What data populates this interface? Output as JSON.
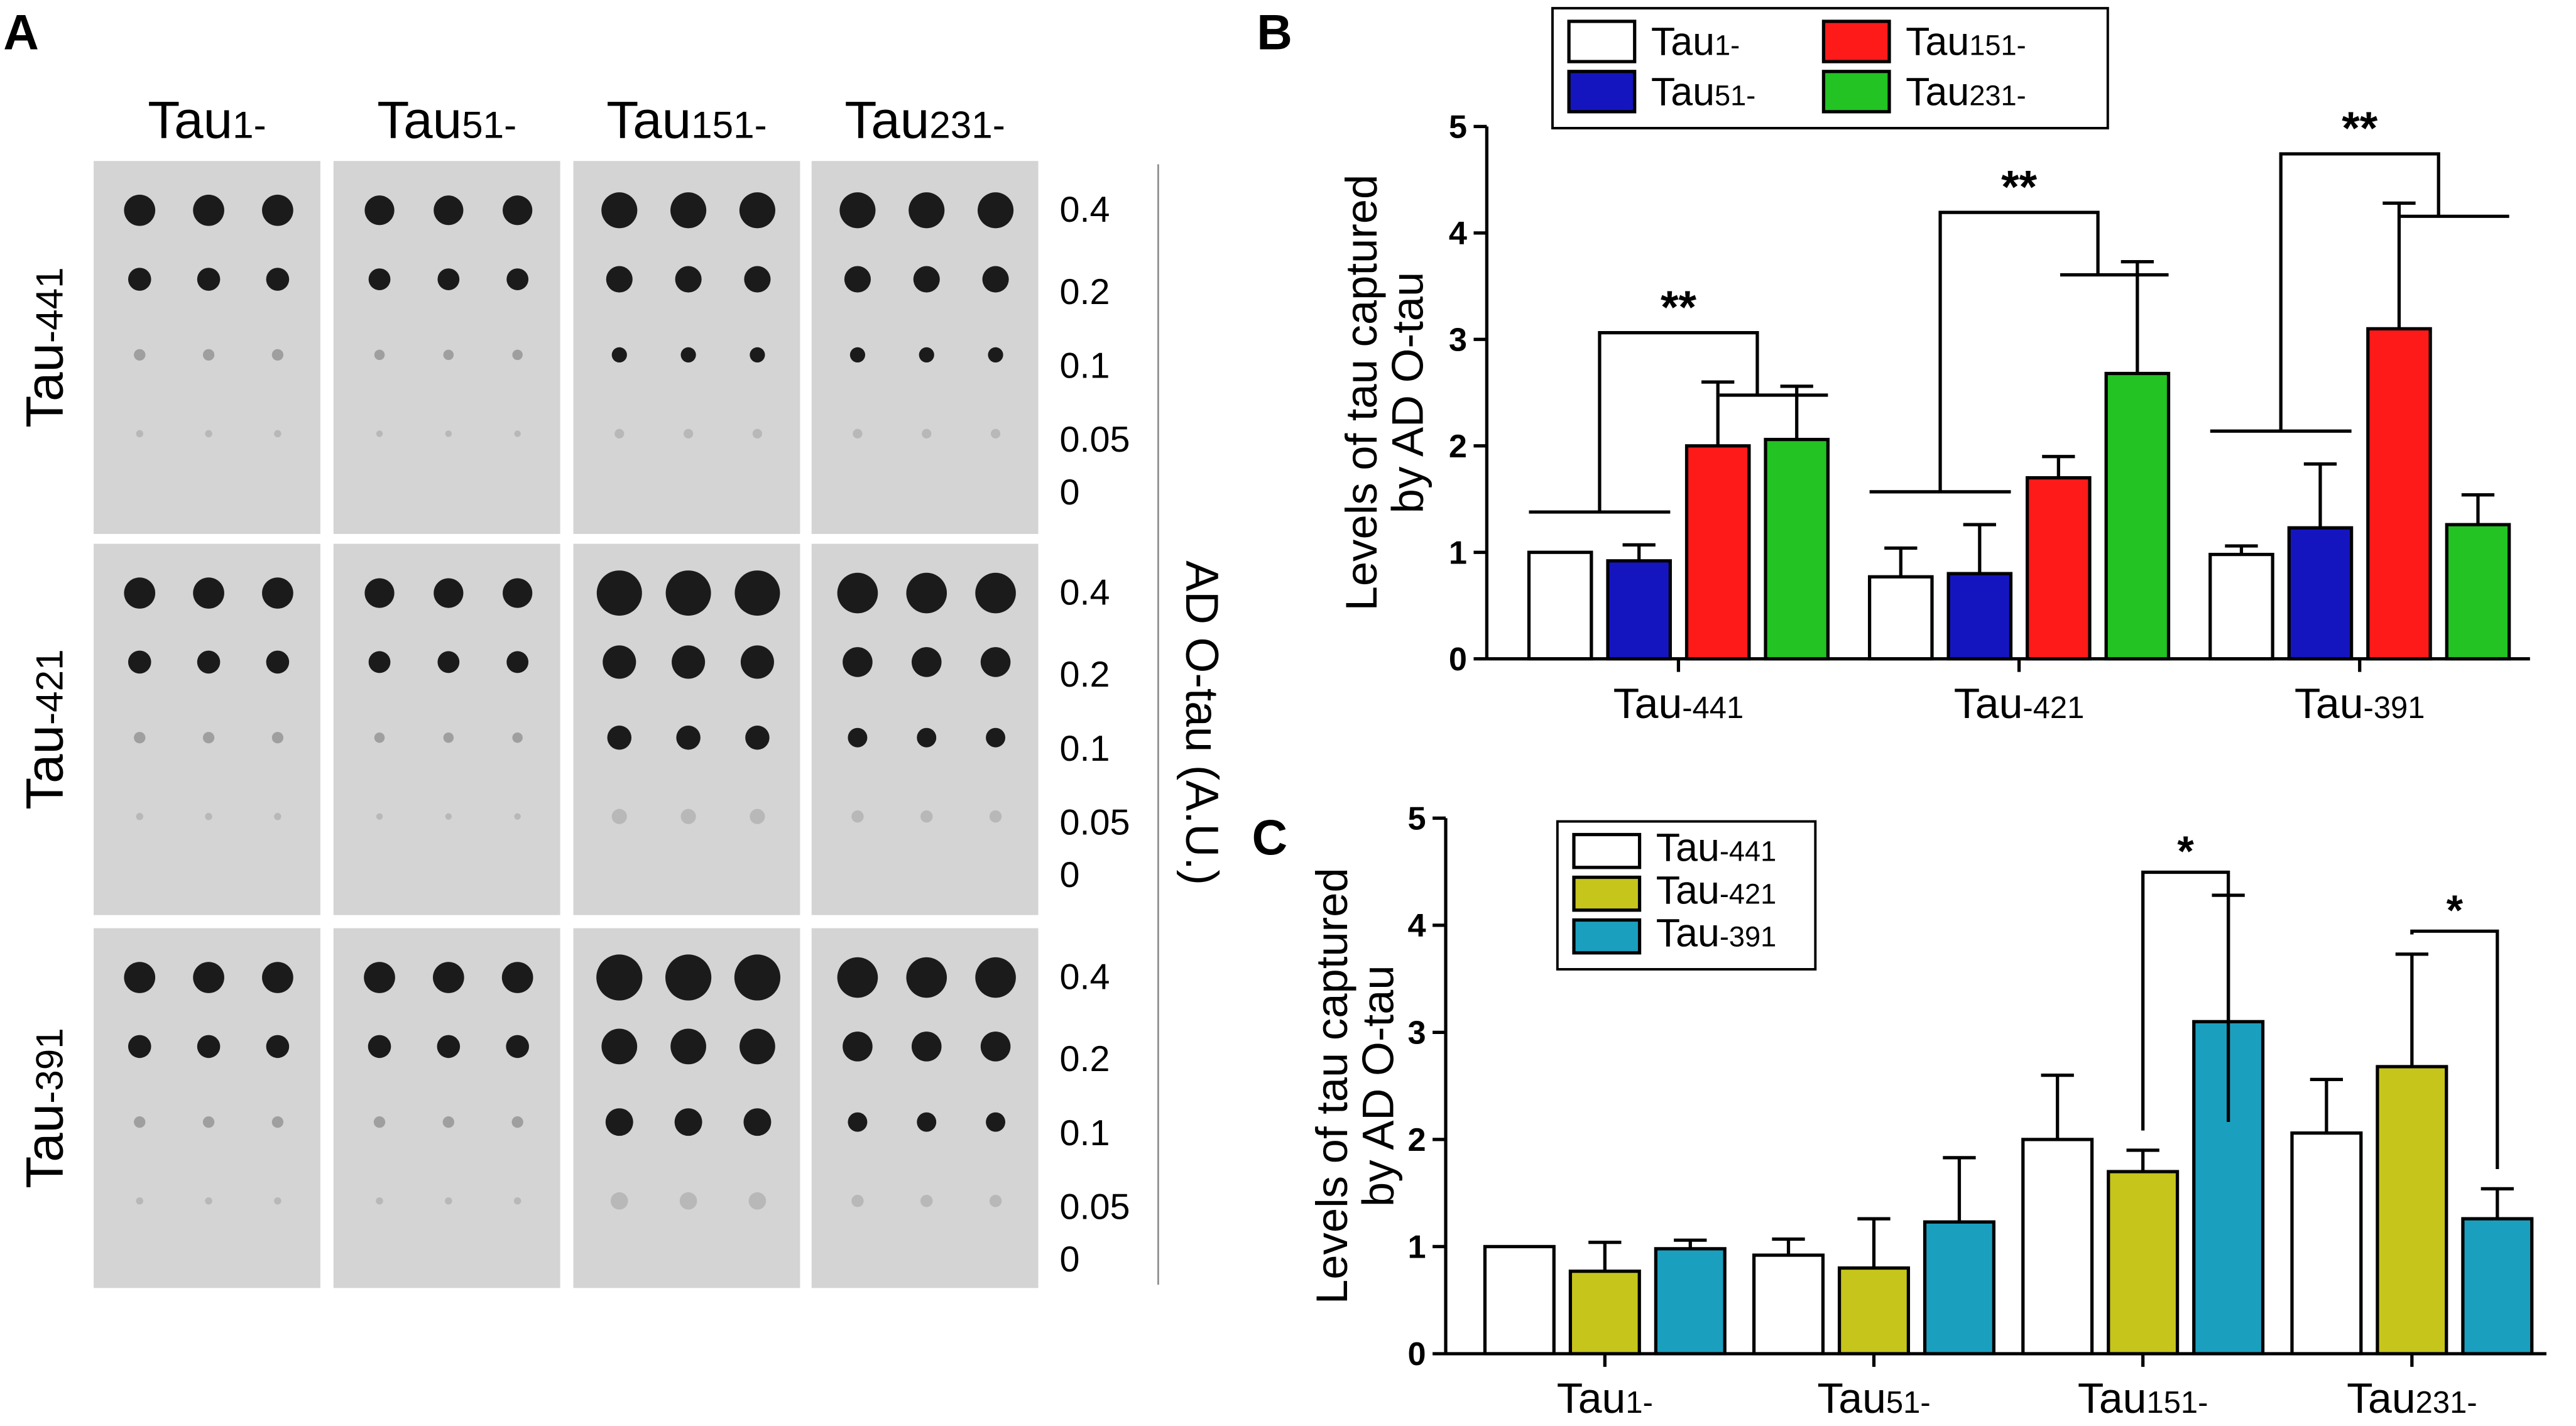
{
  "blot": {
    "label": "A",
    "columns": [
      "Tau1-",
      "Tau51-",
      "Tau151-",
      "Tau231-"
    ],
    "rows": [
      "Tau-441",
      "Tau-421",
      "Tau-391"
    ],
    "concentrations": [
      "0.4",
      "0.2",
      "0.1",
      "0.05",
      "0"
    ],
    "axis_label": "AD O-tau (A.U.)"
  },
  "chart_data": [
    {
      "type": "bar",
      "label": "B",
      "ylabel": [
        "Levels of tau captured",
        "by AD O-tau"
      ],
      "categories": [
        "Tau-441",
        "Tau-421",
        "Tau-391"
      ],
      "series": [
        {
          "name": "Tau1-",
          "color": "#ffffff",
          "values": [
            1.0,
            0.77,
            0.98
          ],
          "errors": [
            0,
            0.27,
            0.08
          ]
        },
        {
          "name": "Tau51-",
          "color": "#1515c0",
          "values": [
            0.92,
            0.8,
            1.23
          ],
          "errors": [
            0.15,
            0.46,
            0.6
          ]
        },
        {
          "name": "Tau151-",
          "color": "#ff1a1a",
          "values": [
            2.0,
            1.7,
            3.1
          ],
          "errors": [
            0.6,
            0.2,
            1.18
          ]
        },
        {
          "name": "Tau231-",
          "color": "#22c322",
          "values": [
            2.06,
            2.68,
            1.26
          ],
          "errors": [
            0.5,
            1.05,
            0.28
          ]
        }
      ],
      "annotations": [
        "**",
        "**",
        "**"
      ],
      "ylim": [
        0,
        5
      ],
      "yticks": [
        0,
        1,
        2,
        3,
        4,
        5
      ]
    },
    {
      "type": "bar",
      "label": "C",
      "ylabel": [
        "Levels of tau captured",
        "by AD O-tau"
      ],
      "categories": [
        "Tau1-",
        "Tau51-",
        "Tau151-",
        "Tau231-"
      ],
      "series": [
        {
          "name": "Tau-441",
          "color": "#ffffff",
          "values": [
            1.0,
            0.92,
            2.0,
            2.06
          ],
          "errors": [
            0,
            0.15,
            0.6,
            0.5
          ]
        },
        {
          "name": "Tau-421",
          "color": "#c6c51c",
          "values": [
            0.77,
            0.8,
            1.7,
            2.68
          ],
          "errors": [
            0.27,
            0.46,
            0.2,
            1.05
          ]
        },
        {
          "name": "Tau-391",
          "color": "#1b9fbf",
          "values": [
            0.98,
            1.23,
            3.1,
            1.26
          ],
          "errors": [
            0.08,
            0.6,
            1.18,
            0.28
          ]
        }
      ],
      "annotations": [
        null,
        null,
        "*",
        "*"
      ],
      "ylim": [
        0,
        5
      ],
      "yticks": [
        0,
        1,
        2,
        3,
        4,
        5
      ]
    }
  ]
}
